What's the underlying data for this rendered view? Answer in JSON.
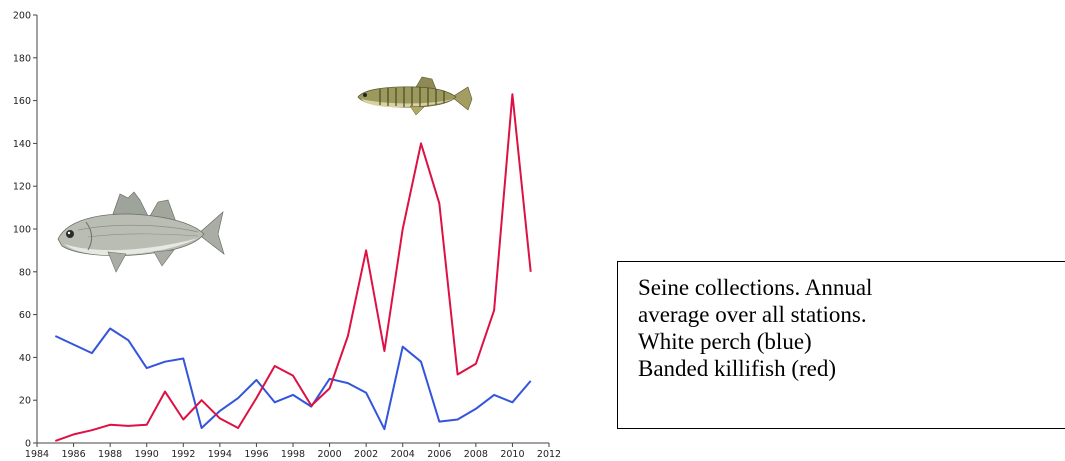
{
  "caption": {
    "lines": [
      "Seine collections. Annual",
      "average over all stations.",
      "White perch (blue)",
      "Banded killifish (red)"
    ]
  },
  "chart_data": {
    "type": "line",
    "xlim": [
      1984,
      2012
    ],
    "ylim": [
      0,
      200
    ],
    "x_ticks": [
      1984,
      1986,
      1988,
      1990,
      1992,
      1994,
      1996,
      1998,
      2000,
      2002,
      2004,
      2006,
      2008,
      2010,
      2012
    ],
    "y_ticks": [
      0,
      20,
      40,
      60,
      80,
      100,
      120,
      140,
      160,
      180,
      200
    ],
    "grid": false,
    "series": [
      {
        "color": "#3355dd",
        "points": [
          [
            1985,
            50
          ],
          [
            1987,
            42
          ],
          [
            1988,
            53.5
          ],
          [
            1989,
            48
          ],
          [
            1990,
            35
          ],
          [
            1991,
            38
          ],
          [
            1992,
            39.5
          ],
          [
            1993,
            7
          ],
          [
            1994,
            15
          ],
          [
            1995,
            21
          ],
          [
            1996,
            29.5
          ],
          [
            1997,
            19
          ],
          [
            1998,
            22.5
          ],
          [
            1999,
            17
          ],
          [
            2000,
            30
          ],
          [
            2001,
            28
          ],
          [
            2002,
            23.5
          ],
          [
            2003,
            6.5
          ],
          [
            2004,
            45
          ],
          [
            2005,
            38
          ],
          [
            2006,
            10
          ],
          [
            2007,
            11
          ],
          [
            2008,
            16
          ],
          [
            2009,
            22.5
          ],
          [
            2010,
            19
          ],
          [
            2011,
            29
          ]
        ]
      },
      {
        "color": "#dd1144",
        "points": [
          [
            1985,
            1
          ],
          [
            1986,
            4
          ],
          [
            1987,
            6
          ],
          [
            1988,
            8.5
          ],
          [
            1989,
            8
          ],
          [
            1990,
            8.5
          ],
          [
            1991,
            24
          ],
          [
            1992,
            11
          ],
          [
            1993,
            20
          ],
          [
            1994,
            11.5
          ],
          [
            1995,
            7
          ],
          [
            1996,
            21
          ],
          [
            1997,
            36
          ],
          [
            1998,
            31.5
          ],
          [
            1999,
            17.5
          ],
          [
            2000,
            25.5
          ],
          [
            2001,
            50
          ],
          [
            2002,
            90
          ],
          [
            2003,
            43
          ],
          [
            2004,
            100
          ],
          [
            2005,
            140
          ],
          [
            2006,
            112
          ],
          [
            2007,
            32
          ],
          [
            2008,
            37
          ],
          [
            2009,
            62
          ],
          [
            2010,
            163
          ],
          [
            2011,
            80
          ]
        ]
      }
    ],
    "images": [
      "white-perch-fish",
      "banded-killifish-fish"
    ]
  }
}
